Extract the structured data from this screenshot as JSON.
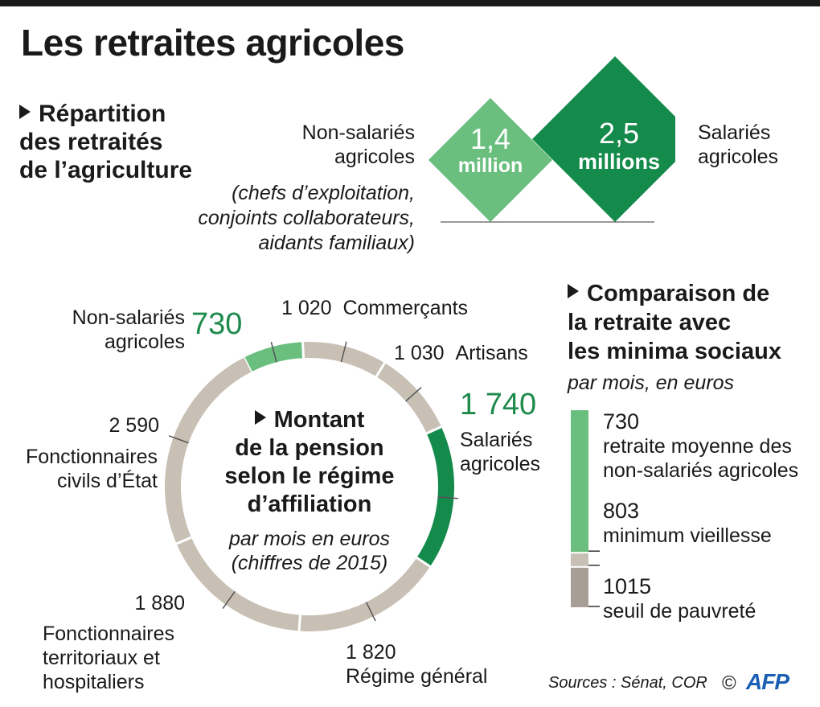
{
  "title": "Les retraites agricoles",
  "colors": {
    "light_green": "#6abf7f",
    "dark_green": "#148a4b",
    "grey": "#c8c0b4",
    "dark_grey": "#a79e95",
    "text_green": "#1e8a4c"
  },
  "repartition": {
    "title_lines": [
      "Répartition",
      "des retraités",
      "de l’agriculture"
    ],
    "non_salaries": {
      "label_lines": [
        "Non-salariés",
        "agricoles"
      ],
      "detail_lines": [
        "(chefs d’exploitation,",
        "conjoints collaborateurs,",
        "aidants familiaux)"
      ],
      "value_number": "1,4",
      "value_unit": "million"
    },
    "salaries": {
      "label_lines": [
        "Salariés",
        "agricoles"
      ],
      "value_number": "2,5",
      "value_unit": "millions"
    }
  },
  "pension": {
    "title_lines": [
      "Montant",
      "de la pension",
      "selon le régime",
      "d’affiliation"
    ],
    "subtitle_lines": [
      "par mois en euros",
      "(chiffres de 2015)"
    ],
    "labels": {
      "non_salaries_value": "730",
      "non_salaries_lines": [
        "Non-salariés",
        "agricoles"
      ],
      "commercants_value": "1 020",
      "commercants_label": "Commerçants",
      "artisans_value": "1 030",
      "artisans_label": "Artisans",
      "salaries_value": "1 740",
      "salaries_lines": [
        "Salariés",
        "agricoles"
      ],
      "general_value": "1 820",
      "general_label": "Régime général",
      "territoriaux_value": "1 880",
      "territoriaux_lines": [
        "Fonctionnaires",
        "territoriaux et",
        "hospitaliers"
      ],
      "etat_value": "2 590",
      "etat_lines": [
        "Fonctionnaires",
        "civils d’État"
      ]
    }
  },
  "chart_data": [
    {
      "type": "pie",
      "title": "Montant de la pension selon le régime d’affiliation",
      "subtitle": "par mois en euros (chiffres de 2015)",
      "categories": [
        "Non-salariés agricoles",
        "Commerçants",
        "Artisans",
        "Salariés agricoles",
        "Régime général",
        "Fonctionnaires territoriaux et hospitaliers",
        "Fonctionnaires civils d’État"
      ],
      "values": [
        730,
        1020,
        1030,
        1740,
        1820,
        1880,
        2590
      ],
      "highlight": [
        "Non-salariés agricoles",
        "Salariés agricoles"
      ]
    },
    {
      "type": "bar",
      "title": "Comparaison de la retraite avec les minima sociaux",
      "subtitle": "par mois, en euros",
      "categories": [
        "retraite moyenne des non-salariés agricoles",
        "minimum vieillesse",
        "seuil de pauvreté"
      ],
      "values": [
        730,
        803,
        1015
      ]
    }
  ],
  "comparison": {
    "title_lines": [
      "Comparaison de",
      "la retraite avec",
      "les minima sociaux"
    ],
    "subtitle": "par mois, en euros",
    "items": [
      {
        "value": "730",
        "label_lines": [
          "retraite moyenne des",
          "non-salariés agricoles"
        ]
      },
      {
        "value": "803",
        "label_lines": [
          "minimum vieillesse"
        ]
      },
      {
        "value": "1015",
        "label_lines": [
          "seuil de pauvreté"
        ]
      }
    ]
  },
  "footer": {
    "sources": "Sources : Sénat, COR",
    "copyright": "©",
    "logo": "AFP"
  }
}
